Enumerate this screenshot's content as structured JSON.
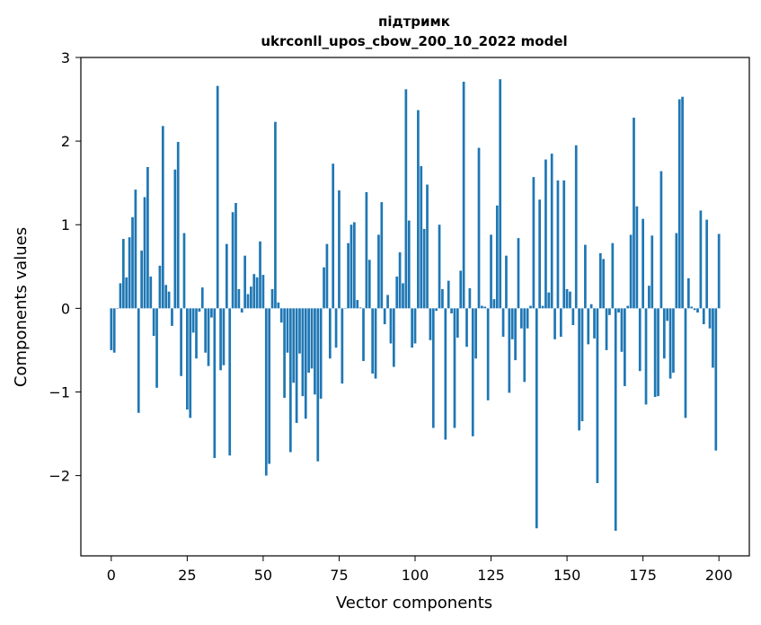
{
  "chart_data": {
    "type": "bar",
    "title_line1": "підтримк",
    "title_line2": "ukrconll_upos_cbow_200_10_2022 model",
    "xlabel": "Vector components",
    "ylabel": "Components values",
    "xlim": [
      -10,
      210
    ],
    "ylim": [
      -2.96,
      3.0
    ],
    "xticks": [
      0,
      25,
      50,
      75,
      100,
      125,
      150,
      175,
      200
    ],
    "xtick_labels": [
      "0",
      "25",
      "50",
      "75",
      "100",
      "125",
      "150",
      "175",
      "200"
    ],
    "yticks": [
      -2,
      -1,
      0,
      1,
      2,
      3
    ],
    "ytick_labels": [
      "−2",
      "−1",
      "0",
      "1",
      "2",
      "3"
    ],
    "bar_color": "#1f77b4",
    "grid": false,
    "values": [
      -0.5,
      -0.53,
      0.0,
      0.3,
      0.83,
      0.37,
      0.85,
      1.09,
      1.42,
      -1.25,
      0.69,
      1.33,
      1.69,
      0.38,
      -0.33,
      -0.95,
      0.51,
      2.18,
      0.28,
      0.2,
      -0.21,
      1.66,
      1.99,
      -0.81,
      0.9,
      -1.21,
      -1.31,
      -0.29,
      -0.6,
      -0.04,
      0.25,
      -0.53,
      -0.69,
      -0.11,
      -1.79,
      2.66,
      -0.74,
      -0.68,
      0.77,
      -1.76,
      1.15,
      1.26,
      0.23,
      -0.05,
      0.63,
      0.17,
      0.26,
      0.41,
      0.37,
      0.8,
      0.4,
      -2.0,
      -1.86,
      0.23,
      2.23,
      0.07,
      -0.17,
      -1.07,
      -0.53,
      -1.72,
      -0.89,
      -1.37,
      -0.54,
      -1.05,
      -1.32,
      -0.77,
      -0.72,
      -1.03,
      -1.83,
      -1.08,
      0.49,
      0.77,
      -0.6,
      1.73,
      -0.47,
      1.41,
      -0.9,
      0.0,
      0.78,
      1.0,
      1.03,
      0.1,
      0.01,
      -0.63,
      1.39,
      0.58,
      -0.78,
      -0.84,
      0.88,
      1.27,
      -0.19,
      0.16,
      -0.42,
      -0.7,
      0.38,
      0.67,
      0.3,
      2.62,
      1.05,
      -0.47,
      -0.42,
      2.37,
      1.7,
      0.95,
      1.48,
      -0.38,
      -1.43,
      -0.03,
      1.0,
      0.23,
      -1.57,
      0.33,
      -0.06,
      -1.43,
      -0.35,
      0.45,
      2.71,
      -0.46,
      0.24,
      -1.53,
      -0.6,
      1.92,
      0.03,
      0.02,
      -1.1,
      0.88,
      0.11,
      1.23,
      2.74,
      -0.34,
      0.63,
      -1.01,
      -0.37,
      -0.62,
      0.84,
      -0.24,
      -0.88,
      -0.24,
      0.03,
      1.57,
      -2.63,
      1.3,
      0.03,
      1.78,
      0.19,
      1.85,
      -0.37,
      1.53,
      -0.34,
      1.53,
      0.23,
      0.2,
      -0.2,
      1.95,
      -1.46,
      -1.35,
      0.76,
      -0.43,
      0.05,
      -0.36,
      -2.09,
      0.66,
      0.59,
      -0.5,
      -0.08,
      0.78,
      -2.66,
      -0.05,
      -0.52,
      -0.93,
      0.03,
      0.88,
      2.28,
      1.22,
      -0.75,
      1.07,
      -1.15,
      0.27,
      0.87,
      -1.06,
      -1.05,
      1.64,
      -0.6,
      -0.15,
      -0.84,
      -0.77,
      0.9,
      2.5,
      2.53,
      -1.31,
      0.36,
      0.02,
      -0.02,
      -0.05,
      1.17,
      -0.19,
      1.06,
      -0.24,
      -0.71,
      -1.7,
      0.89
    ]
  }
}
